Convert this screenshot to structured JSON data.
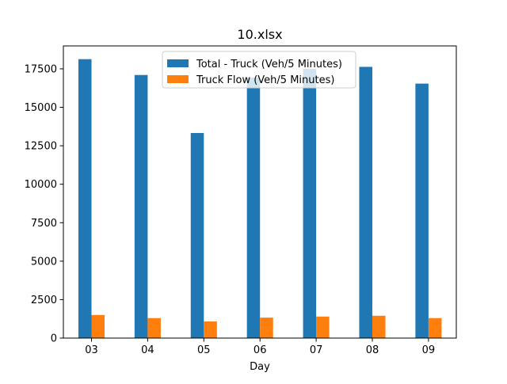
{
  "chart_data": {
    "type": "bar",
    "title": "10.xlsx",
    "xlabel": "Day",
    "ylabel": "",
    "categories": [
      "03",
      "04",
      "05",
      "06",
      "07",
      "08",
      "09"
    ],
    "series": [
      {
        "name": "Total - Truck (Veh/5 Minutes)",
        "color": "#1f77b4",
        "values": [
          18130,
          17100,
          13330,
          16930,
          17500,
          17630,
          16540
        ]
      },
      {
        "name": "Truck Flow (Veh/5 Minutes)",
        "color": "#ff7f0e",
        "values": [
          1500,
          1300,
          1080,
          1330,
          1400,
          1450,
          1300
        ]
      }
    ],
    "ylim": [
      0,
      18990
    ],
    "yticks": [
      0,
      2500,
      5000,
      7500,
      10000,
      12500,
      15000,
      17500
    ],
    "grid": false,
    "legend_position": "top-center"
  }
}
